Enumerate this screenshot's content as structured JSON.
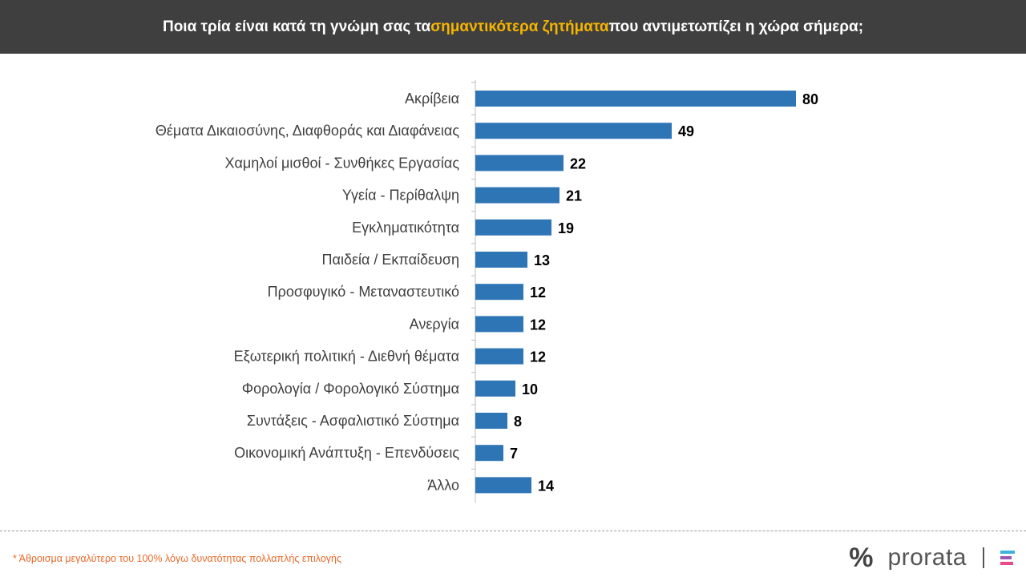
{
  "header": {
    "title_before": "Ποια τρία είναι κατά τη γνώμη σας τα ",
    "title_highlight": "σημαντικότερα ζητήματα",
    "title_after": " που αντιμετωπίζει η χώρα σήμερα;",
    "highlight_color": "#f5b400"
  },
  "chart_data": {
    "type": "bar",
    "orientation": "horizontal",
    "categories": [
      "Ακρίβεια",
      "Θέματα Δικαιοσύνης, Διαφθοράς και Διαφάνειας",
      "Χαμηλοί μισθοί - Συνθήκες Εργασίας",
      "Υγεία - Περίθαλψη",
      "Εγκληματικότητα",
      "Παιδεία / Εκπαίδευση",
      "Προσφυγικό - Μεταναστευτικό",
      "Ανεργία",
      "Εξωτερική πολιτική - Διεθνή θέματα",
      "Φορολογία / Φορολογικό Σύστημα",
      "Συντάξεις - Ασφαλιστικό Σύστημα",
      "Οικονομική Ανάπτυξη - Επενδύσεις",
      "Άλλο"
    ],
    "values": [
      80,
      49,
      22,
      21,
      19,
      13,
      12,
      12,
      12,
      10,
      8,
      7,
      14
    ],
    "bar_color": "#2e75b6",
    "grid": false,
    "legend": "none"
  },
  "footer": {
    "footnote": "* Άθροισμα μεγαλύτερο του 100% λόγω δυνατότητας πολλαπλής επιλογής",
    "logo_symbol": "%",
    "logo_word": "prorata"
  }
}
